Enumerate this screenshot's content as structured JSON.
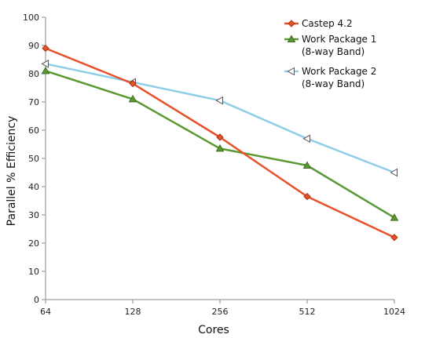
{
  "chart_data": {
    "type": "line",
    "xlabel": "Cores",
    "ylabel": "Parallel % Efficiency",
    "categories": [
      "64",
      "128",
      "256",
      "512",
      "1024"
    ],
    "ylim": [
      0,
      100
    ],
    "yticks": [
      0,
      10,
      20,
      30,
      40,
      50,
      60,
      70,
      80,
      90,
      100
    ],
    "grid": false,
    "legend_position": "top-right",
    "series": [
      {
        "name": "Castep 4.2",
        "legend_lines": [
          "Castep 4.2"
        ],
        "color": "#e8502a",
        "marker": "diamond",
        "values": [
          89,
          76.5,
          57.5,
          36.5,
          22
        ]
      },
      {
        "name": "Work Package 1 (8-way Band)",
        "legend_lines": [
          "Work Package 1",
          "(8-way Band)"
        ],
        "color": "#5a9a32",
        "marker": "triangle-up",
        "values": [
          81,
          71,
          53.5,
          47.5,
          29
        ]
      },
      {
        "name": "Work Package 2 (8-way Band)",
        "legend_lines": [
          "Work Package 2",
          "(8-way Band)"
        ],
        "color": "#8fcde8",
        "marker": "triangle-left",
        "values": [
          83.5,
          77,
          70.5,
          57,
          45
        ]
      }
    ]
  }
}
